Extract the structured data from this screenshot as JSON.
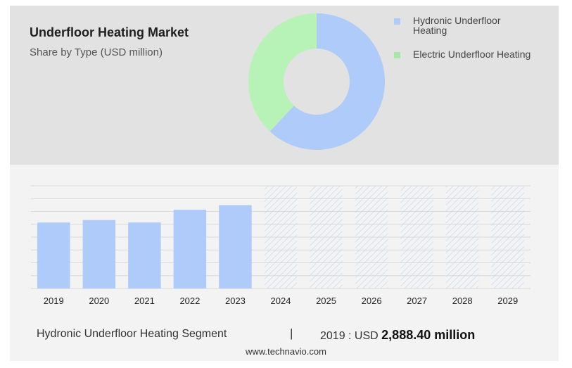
{
  "title": "Underfloor Heating Market",
  "subtitle": "Share by Type (USD million)",
  "legend": [
    {
      "label": "Hydronic Underfloor Heating",
      "color": "#aecbfa"
    },
    {
      "label": "Electric Underfloor Heating",
      "color": "#a8e6a8"
    }
  ],
  "footer": {
    "segment": "Hydronic Underfloor Heating Segment",
    "separator": "|",
    "year_prefix": "2019 : USD",
    "value": "2,888.40 million",
    "source": "www.technavio.com"
  },
  "chart_data": [
    {
      "type": "pie",
      "donut": true,
      "labels": [
        "Hydronic Underfloor Heating",
        "Electric Underfloor Heating"
      ],
      "values": [
        62,
        38
      ],
      "colors": [
        "#aecbfa",
        "#b7f2b7"
      ]
    },
    {
      "type": "bar",
      "categories": [
        "2019",
        "2020",
        "2021",
        "2022",
        "2023",
        "2024",
        "2025",
        "2026",
        "2027",
        "2028",
        "2029"
      ],
      "values": [
        2888.4,
        3000,
        2890,
        3450,
        3650,
        null,
        null,
        null,
        null,
        null,
        null
      ],
      "forecast_categories": [
        "2024",
        "2025",
        "2026",
        "2027",
        "2028",
        "2029"
      ],
      "ylim": [
        0,
        4500
      ],
      "grid": true,
      "color": "#aecbfa"
    }
  ]
}
